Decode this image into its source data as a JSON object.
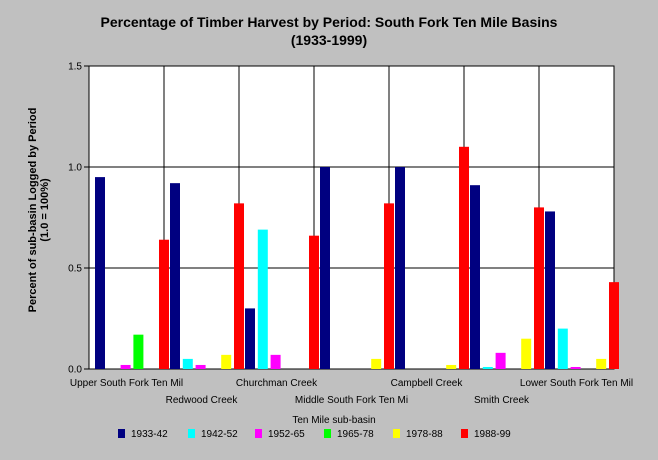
{
  "chart_data": {
    "type": "bar",
    "title": "Percentage of Timber Harvest by Period: South Fork Ten Mile Basins",
    "subtitle": "(1933-1999)",
    "ylabel": "Percent of sub-basin Logged by Period",
    "ylabel_sub": "(1.0 = 100%)",
    "legend_title": "Ten Mile sub-basin",
    "legend_position": "bottom",
    "grid": true,
    "ylim": [
      0,
      1.5
    ],
    "yticks": [
      "0.0",
      "0.5",
      "1.0",
      "1.5"
    ],
    "ytick_values": [
      0,
      0.5,
      1.0,
      1.5
    ],
    "categories": [
      "Upper South Fork Ten Mil",
      "Redwood Creek",
      "Churchman Creek",
      "Middle South Fork Ten Mi",
      "Campbell Creek",
      "Smith Creek",
      "Lower South Fork Ten Mil"
    ],
    "series": [
      {
        "name": "1933-42",
        "color": "#000080",
        "values": [
          0.95,
          0.92,
          0.3,
          1.0,
          1.0,
          0.91,
          0.78
        ]
      },
      {
        "name": "1942-52",
        "color": "#00ffff",
        "values": [
          0.0,
          0.05,
          0.69,
          0.0,
          0.0,
          0.01,
          0.2
        ]
      },
      {
        "name": "1952-65",
        "color": "#ff00ff",
        "values": [
          0.02,
          0.02,
          0.07,
          0.0,
          0.0,
          0.08,
          0.01
        ]
      },
      {
        "name": "1965-78",
        "color": "#00ff00",
        "values": [
          0.17,
          0.0,
          0.0,
          0.0,
          0.0,
          0.0,
          0.0
        ]
      },
      {
        "name": "1978-88",
        "color": "#ffff00",
        "values": [
          0.0,
          0.07,
          0.0,
          0.05,
          0.02,
          0.15,
          0.05
        ]
      },
      {
        "name": "1988-99",
        "color": "#ff0000",
        "values": [
          0.64,
          0.82,
          0.66,
          0.82,
          1.1,
          0.8,
          0.43
        ]
      }
    ]
  }
}
